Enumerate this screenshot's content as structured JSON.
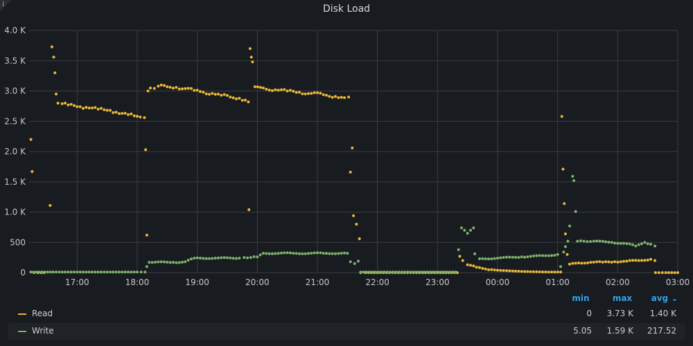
{
  "panel": {
    "title": "Disk Load",
    "info_icon": "i"
  },
  "colors": {
    "read": "#eab839",
    "write": "#7eb26d",
    "grid": "#3a3d42",
    "axis": "#c7c7c7",
    "legend_header": "#33a2e5"
  },
  "y_axis_labels": [
    "0",
    "500",
    "1.0 K",
    "1.5 K",
    "2.0 K",
    "2.5 K",
    "3.0 K",
    "3.5 K",
    "4.0 K"
  ],
  "x_axis_labels": [
    "17:00",
    "18:00",
    "19:00",
    "20:00",
    "21:00",
    "22:00",
    "23:00",
    "00:00",
    "01:00",
    "02:00",
    "03:00"
  ],
  "legend": {
    "headers": {
      "min": "min",
      "max": "max",
      "avg": "avg ⌄"
    },
    "rows": [
      {
        "name": "Read",
        "min": "0",
        "max": "3.73 K",
        "avg": "1.40 K"
      },
      {
        "name": "Write",
        "min": "5.05",
        "max": "1.59 K",
        "avg": "217.52"
      }
    ]
  },
  "chart_data": {
    "type": "scatter",
    "title": "Disk Load",
    "x_unit": "hours since 16:12 (time of day)",
    "ylim": [
      0,
      4000
    ],
    "xlim": [
      16.2,
      27.0
    ],
    "series": [
      {
        "name": "Read",
        "points": [
          [
            16.23,
            2200
          ],
          [
            16.25,
            1670
          ],
          [
            16.28,
            0
          ],
          [
            16.35,
            0
          ],
          [
            16.45,
            0
          ],
          [
            16.55,
            1110
          ],
          [
            16.58,
            3730
          ],
          [
            16.61,
            3560
          ],
          [
            16.63,
            3300
          ],
          [
            16.65,
            2950
          ],
          [
            16.68,
            2800
          ],
          [
            16.75,
            2790
          ],
          [
            16.85,
            2770
          ],
          [
            16.95,
            2760
          ],
          [
            17.05,
            2740
          ],
          [
            17.15,
            2730
          ],
          [
            17.25,
            2720
          ],
          [
            17.35,
            2700
          ],
          [
            17.45,
            2690
          ],
          [
            17.55,
            2680
          ],
          [
            17.65,
            2650
          ],
          [
            17.75,
            2630
          ],
          [
            17.85,
            2610
          ],
          [
            17.95,
            2590
          ],
          [
            18.05,
            2570
          ],
          [
            18.12,
            2560
          ],
          [
            18.14,
            2030
          ],
          [
            18.16,
            620
          ],
          [
            18.18,
            3000
          ],
          [
            18.22,
            3050
          ],
          [
            18.35,
            3080
          ],
          [
            18.5,
            3070
          ],
          [
            18.65,
            3060
          ],
          [
            18.8,
            3040
          ],
          [
            18.95,
            3010
          ],
          [
            19.1,
            2980
          ],
          [
            19.25,
            2960
          ],
          [
            19.4,
            2930
          ],
          [
            19.55,
            2900
          ],
          [
            19.7,
            2880
          ],
          [
            19.8,
            2850
          ],
          [
            19.85,
            2820
          ],
          [
            19.86,
            1040
          ],
          [
            19.88,
            3700
          ],
          [
            19.9,
            3560
          ],
          [
            19.92,
            3480
          ],
          [
            19.96,
            3070
          ],
          [
            20.1,
            3050
          ],
          [
            20.3,
            3020
          ],
          [
            20.5,
            3000
          ],
          [
            20.7,
            2980
          ],
          [
            20.9,
            2960
          ],
          [
            21.1,
            2940
          ],
          [
            21.3,
            2910
          ],
          [
            21.45,
            2890
          ],
          [
            21.52,
            2900
          ],
          [
            21.55,
            1660
          ],
          [
            21.58,
            2060
          ],
          [
            21.6,
            940
          ],
          [
            21.65,
            800
          ],
          [
            21.7,
            560
          ],
          [
            21.72,
            0
          ],
          [
            21.8,
            0
          ],
          [
            22.2,
            0
          ],
          [
            22.6,
            0
          ],
          [
            23.0,
            0
          ],
          [
            23.33,
            0
          ],
          [
            23.37,
            270
          ],
          [
            23.42,
            200
          ],
          [
            23.5,
            130
          ],
          [
            23.65,
            90
          ],
          [
            23.8,
            60
          ],
          [
            24.0,
            40
          ],
          [
            24.2,
            30
          ],
          [
            24.4,
            20
          ],
          [
            24.6,
            15
          ],
          [
            24.85,
            10
          ],
          [
            25.05,
            10
          ],
          [
            25.07,
            2580
          ],
          [
            25.09,
            1710
          ],
          [
            25.11,
            1140
          ],
          [
            25.13,
            640
          ],
          [
            25.16,
            300
          ],
          [
            25.2,
            140
          ],
          [
            25.35,
            160
          ],
          [
            25.55,
            170
          ],
          [
            25.75,
            175
          ],
          [
            25.95,
            180
          ],
          [
            26.15,
            190
          ],
          [
            26.35,
            200
          ],
          [
            26.55,
            220
          ],
          [
            26.62,
            200
          ],
          [
            26.63,
            0
          ],
          [
            26.8,
            0
          ],
          [
            27.0,
            0
          ]
        ]
      },
      {
        "name": "Write",
        "points": [
          [
            16.23,
            10
          ],
          [
            16.6,
            10
          ],
          [
            17.0,
            10
          ],
          [
            17.5,
            10
          ],
          [
            18.0,
            10
          ],
          [
            18.13,
            10
          ],
          [
            18.16,
            100
          ],
          [
            18.2,
            170
          ],
          [
            18.6,
            170
          ],
          [
            18.8,
            180
          ],
          [
            18.95,
            240
          ],
          [
            19.3,
            240
          ],
          [
            19.7,
            240
          ],
          [
            19.78,
            250
          ],
          [
            20.0,
            260
          ],
          [
            20.1,
            320
          ],
          [
            20.6,
            320
          ],
          [
            21.1,
            320
          ],
          [
            21.5,
            320
          ],
          [
            21.55,
            180
          ],
          [
            21.62,
            150
          ],
          [
            21.68,
            190
          ],
          [
            21.72,
            10
          ],
          [
            22.5,
            10
          ],
          [
            23.3,
            10
          ],
          [
            23.35,
            380
          ],
          [
            23.4,
            740
          ],
          [
            23.45,
            700
          ],
          [
            23.5,
            650
          ],
          [
            23.55,
            700
          ],
          [
            23.6,
            740
          ],
          [
            23.62,
            310
          ],
          [
            23.7,
            230
          ],
          [
            24.0,
            240
          ],
          [
            24.4,
            260
          ],
          [
            24.8,
            280
          ],
          [
            25.0,
            300
          ],
          [
            25.05,
            100
          ],
          [
            25.1,
            340
          ],
          [
            25.13,
            430
          ],
          [
            25.17,
            520
          ],
          [
            25.2,
            770
          ],
          [
            25.25,
            1590
          ],
          [
            25.27,
            1520
          ],
          [
            25.3,
            1010
          ],
          [
            25.33,
            520
          ],
          [
            25.6,
            520
          ],
          [
            25.9,
            500
          ],
          [
            26.15,
            480
          ],
          [
            26.3,
            440
          ],
          [
            26.45,
            500
          ],
          [
            26.55,
            470
          ],
          [
            26.62,
            440
          ]
        ]
      }
    ]
  }
}
